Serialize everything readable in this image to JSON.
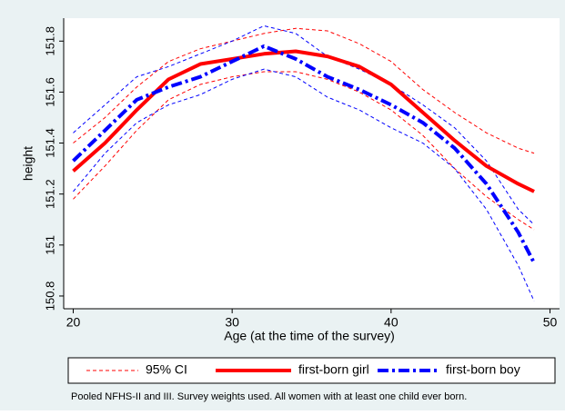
{
  "chart_data": {
    "type": "line",
    "x_label": "Age (at the time of the survey)",
    "y_label": "height",
    "note": "Pooled NFHS-II and III. Survey weights used. All women with at least one child ever born.",
    "ci_label": "95% CI",
    "x": [
      20,
      22,
      24,
      26,
      28,
      30,
      32,
      34,
      36,
      38,
      40,
      42,
      44,
      46,
      48,
      49
    ],
    "series": [
      {
        "name": "first-born girl",
        "color": "#ff0000",
        "ci_color": "#ff0000",
        "style": "solid",
        "values": [
          151.29,
          151.4,
          151.53,
          151.65,
          151.71,
          151.73,
          151.75,
          151.76,
          151.74,
          151.7,
          151.63,
          151.52,
          151.41,
          151.31,
          151.24,
          151.21
        ],
        "ci_upper": [
          151.4,
          151.5,
          151.62,
          151.72,
          151.77,
          151.8,
          151.83,
          151.85,
          151.84,
          151.79,
          151.72,
          151.61,
          151.52,
          151.44,
          151.38,
          151.36
        ],
        "ci_lower": [
          151.18,
          151.31,
          151.45,
          151.57,
          151.63,
          151.66,
          151.68,
          151.68,
          151.65,
          151.6,
          151.53,
          151.43,
          151.3,
          151.19,
          151.1,
          151.06
        ]
      },
      {
        "name": "first-born boy",
        "color": "#0000ff",
        "ci_color": "#0000ff",
        "style": "dashdot",
        "values": [
          151.33,
          151.45,
          151.57,
          151.62,
          151.66,
          151.72,
          151.78,
          151.73,
          151.66,
          151.61,
          151.55,
          151.48,
          151.38,
          151.24,
          151.05,
          150.93
        ],
        "ci_upper": [
          151.44,
          151.55,
          151.66,
          151.7,
          151.75,
          151.8,
          151.86,
          151.83,
          151.74,
          151.69,
          151.63,
          151.55,
          151.46,
          151.33,
          151.14,
          151.08
        ],
        "ci_lower": [
          151.21,
          151.36,
          151.48,
          151.55,
          151.59,
          151.65,
          151.69,
          151.66,
          151.58,
          151.53,
          151.46,
          151.4,
          151.3,
          151.14,
          150.92,
          150.78
        ]
      }
    ],
    "xlim": [
      19.4,
      50.6
    ],
    "xticks": [
      20,
      30,
      40,
      50
    ],
    "ylim": [
      150.75,
      151.89
    ],
    "yticks": [
      150.8,
      151,
      151.2,
      151.4,
      151.6,
      151.8
    ],
    "grid": false
  }
}
